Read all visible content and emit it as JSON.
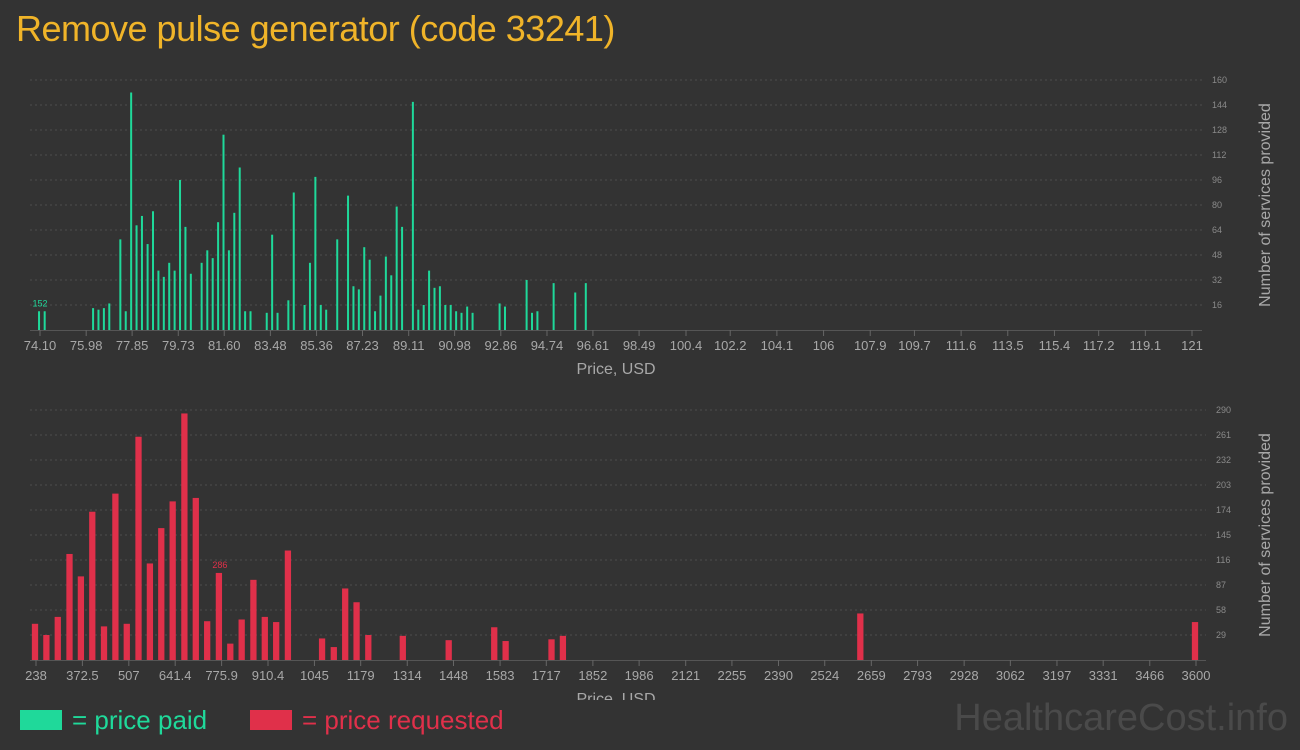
{
  "title": "Remove pulse generator (code 33241)",
  "legend": {
    "paid_label": "= price paid",
    "requested_label": "= price requested"
  },
  "watermark": "HealthcareCost.info",
  "colors": {
    "background": "#333333",
    "title": "#f0b429",
    "paid": "#1fd99a",
    "requested": "#e0304a",
    "tick_text": "#a8a8a8",
    "grid": "#4e4e4e"
  },
  "chart_data": [
    {
      "id": "price-paid",
      "type": "bar",
      "xlabel": "Price, USD",
      "ylabel": "Number of services provided",
      "x_ticks": [
        "74.10",
        "75.98",
        "77.85",
        "79.73",
        "81.60",
        "83.48",
        "85.36",
        "87.23",
        "89.11",
        "90.98",
        "92.86",
        "94.74",
        "96.61",
        "98.49",
        "100.4",
        "102.2",
        "104.1",
        "106",
        "107.9",
        "109.7",
        "111.6",
        "113.5",
        "115.4",
        "117.2",
        "119.1",
        "121"
      ],
      "y_ticks": [
        16,
        32,
        48,
        64,
        80,
        96,
        112,
        128,
        144,
        160
      ],
      "ylim": [
        0,
        160
      ],
      "peak_label": "152",
      "grid": true,
      "bars": [
        {
          "x": 74.1,
          "y": 12
        },
        {
          "x": 74.33,
          "y": 12
        },
        {
          "x": 76.3,
          "y": 14
        },
        {
          "x": 76.52,
          "y": 13
        },
        {
          "x": 76.74,
          "y": 14
        },
        {
          "x": 76.96,
          "y": 17
        },
        {
          "x": 77.41,
          "y": 58
        },
        {
          "x": 77.63,
          "y": 12
        },
        {
          "x": 77.85,
          "y": 152
        },
        {
          "x": 78.07,
          "y": 67
        },
        {
          "x": 78.29,
          "y": 73
        },
        {
          "x": 78.52,
          "y": 55
        },
        {
          "x": 78.74,
          "y": 76
        },
        {
          "x": 78.96,
          "y": 38
        },
        {
          "x": 79.18,
          "y": 34
        },
        {
          "x": 79.4,
          "y": 43
        },
        {
          "x": 79.62,
          "y": 38
        },
        {
          "x": 79.84,
          "y": 96
        },
        {
          "x": 80.06,
          "y": 66
        },
        {
          "x": 80.28,
          "y": 36
        },
        {
          "x": 80.72,
          "y": 43
        },
        {
          "x": 80.95,
          "y": 51
        },
        {
          "x": 81.17,
          "y": 46
        },
        {
          "x": 81.39,
          "y": 69
        },
        {
          "x": 81.61,
          "y": 125
        },
        {
          "x": 81.83,
          "y": 51
        },
        {
          "x": 82.05,
          "y": 75
        },
        {
          "x": 82.27,
          "y": 104
        },
        {
          "x": 82.49,
          "y": 12
        },
        {
          "x": 82.71,
          "y": 12
        },
        {
          "x": 83.37,
          "y": 11
        },
        {
          "x": 83.59,
          "y": 61
        },
        {
          "x": 83.81,
          "y": 11
        },
        {
          "x": 84.25,
          "y": 19
        },
        {
          "x": 84.47,
          "y": 88
        },
        {
          "x": 84.91,
          "y": 16
        },
        {
          "x": 85.13,
          "y": 43
        },
        {
          "x": 85.35,
          "y": 98
        },
        {
          "x": 85.57,
          "y": 16
        },
        {
          "x": 85.79,
          "y": 13
        },
        {
          "x": 86.24,
          "y": 58
        },
        {
          "x": 86.68,
          "y": 86
        },
        {
          "x": 86.9,
          "y": 28
        },
        {
          "x": 87.12,
          "y": 26
        },
        {
          "x": 87.34,
          "y": 53
        },
        {
          "x": 87.56,
          "y": 45
        },
        {
          "x": 87.78,
          "y": 12
        },
        {
          "x": 88.0,
          "y": 22
        },
        {
          "x": 88.22,
          "y": 47
        },
        {
          "x": 88.44,
          "y": 35
        },
        {
          "x": 88.66,
          "y": 79
        },
        {
          "x": 88.88,
          "y": 66
        },
        {
          "x": 89.32,
          "y": 146
        },
        {
          "x": 89.54,
          "y": 13
        },
        {
          "x": 89.76,
          "y": 16
        },
        {
          "x": 89.98,
          "y": 38
        },
        {
          "x": 90.2,
          "y": 27
        },
        {
          "x": 90.42,
          "y": 28
        },
        {
          "x": 90.64,
          "y": 16
        },
        {
          "x": 90.86,
          "y": 16
        },
        {
          "x": 91.08,
          "y": 12
        },
        {
          "x": 91.3,
          "y": 11
        },
        {
          "x": 91.53,
          "y": 15
        },
        {
          "x": 91.75,
          "y": 11
        },
        {
          "x": 92.85,
          "y": 17
        },
        {
          "x": 93.07,
          "y": 15
        },
        {
          "x": 93.95,
          "y": 32
        },
        {
          "x": 94.17,
          "y": 11
        },
        {
          "x": 94.39,
          "y": 12
        },
        {
          "x": 95.05,
          "y": 30
        },
        {
          "x": 95.93,
          "y": 24
        },
        {
          "x": 96.36,
          "y": 30
        }
      ],
      "bar_width": 0.16
    },
    {
      "id": "price-requested",
      "type": "bar",
      "xlabel": "Price, USD",
      "ylabel": "Number of services provided",
      "x_ticks": [
        "238",
        "372.5",
        "507",
        "641.4",
        "775.9",
        "910.4",
        "1045",
        "1179",
        "1314",
        "1448",
        "1583",
        "1717",
        "1852",
        "1986",
        "2121",
        "2255",
        "2390",
        "2524",
        "2659",
        "2793",
        "2928",
        "3062",
        "3197",
        "3331",
        "3466",
        "3600"
      ],
      "y_ticks": [
        29,
        58,
        87,
        116,
        145,
        174,
        203,
        232,
        261,
        290
      ],
      "ylim": [
        0,
        290
      ],
      "peak_label": "286",
      "grid": true,
      "bars": [
        {
          "x": 238,
          "y": 42
        },
        {
          "x": 271,
          "y": 29
        },
        {
          "x": 304,
          "y": 50
        },
        {
          "x": 338,
          "y": 123
        },
        {
          "x": 371,
          "y": 97
        },
        {
          "x": 404,
          "y": 172
        },
        {
          "x": 438,
          "y": 39
        },
        {
          "x": 471,
          "y": 193
        },
        {
          "x": 504,
          "y": 42
        },
        {
          "x": 538,
          "y": 259
        },
        {
          "x": 571,
          "y": 112
        },
        {
          "x": 604,
          "y": 153
        },
        {
          "x": 637,
          "y": 184
        },
        {
          "x": 671,
          "y": 286
        },
        {
          "x": 704,
          "y": 188
        },
        {
          "x": 737,
          "y": 45
        },
        {
          "x": 771,
          "y": 101
        },
        {
          "x": 804,
          "y": 19
        },
        {
          "x": 837,
          "y": 47
        },
        {
          "x": 871,
          "y": 93
        },
        {
          "x": 904,
          "y": 50
        },
        {
          "x": 937,
          "y": 44
        },
        {
          "x": 971,
          "y": 127
        },
        {
          "x": 1070,
          "y": 25
        },
        {
          "x": 1104,
          "y": 15
        },
        {
          "x": 1137,
          "y": 83
        },
        {
          "x": 1170,
          "y": 67
        },
        {
          "x": 1204,
          "y": 29
        },
        {
          "x": 1304,
          "y": 28
        },
        {
          "x": 1437,
          "y": 23
        },
        {
          "x": 1569,
          "y": 38
        },
        {
          "x": 1602,
          "y": 22
        },
        {
          "x": 1735,
          "y": 24
        },
        {
          "x": 1768,
          "y": 28
        },
        {
          "x": 2630,
          "y": 54
        },
        {
          "x": 3600,
          "y": 44
        }
      ],
      "bar_width": 24
    }
  ]
}
